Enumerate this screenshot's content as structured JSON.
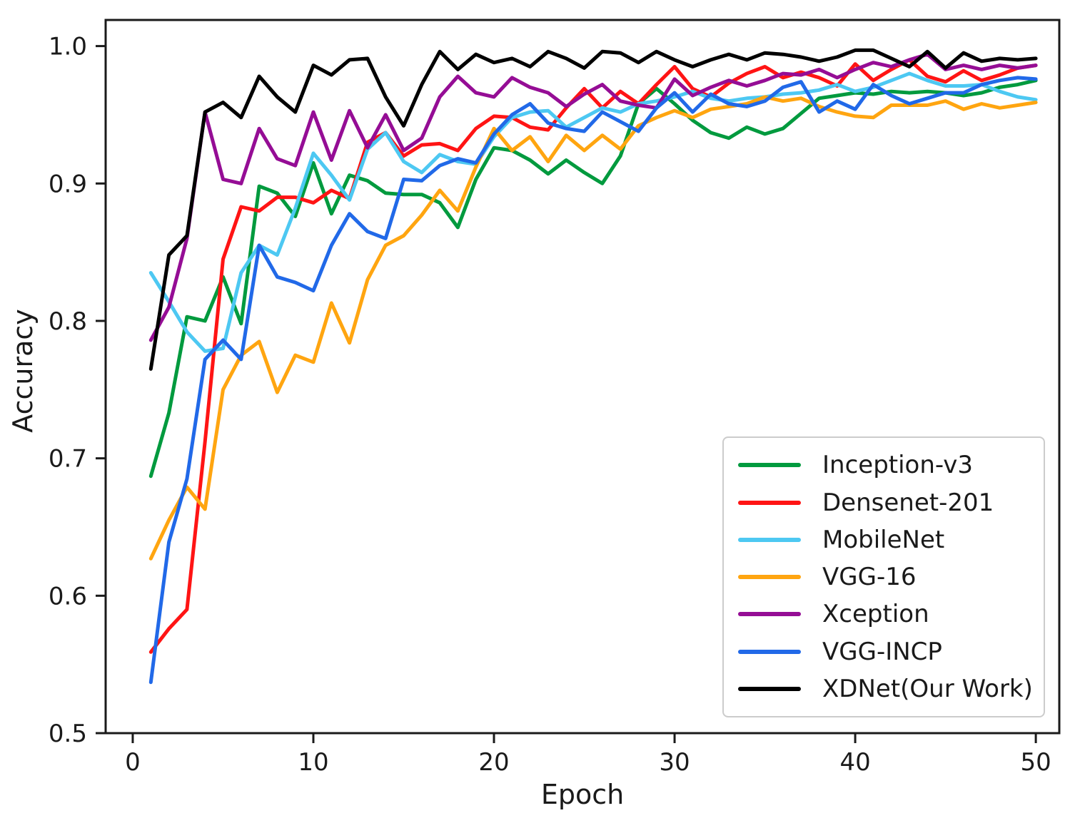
{
  "figure": {
    "xlabel": "Epoch",
    "ylabel": "Accuracy"
  },
  "colors": {
    "axis": "#1a1a1a",
    "legend_border": "#cccccc",
    "background": "#ffffff"
  },
  "chart_data": {
    "type": "line",
    "xlabel": "Epoch",
    "ylabel": "Accuracy",
    "xlim": [
      -1.5,
      51.3
    ],
    "ylim": [
      0.5,
      1.019
    ],
    "x_ticks": [
      0,
      10,
      20,
      30,
      40,
      50
    ],
    "x_tick_labels": [
      "0",
      "10",
      "20",
      "30",
      "40",
      "50"
    ],
    "y_ticks": [
      0.5,
      0.6,
      0.7,
      0.8,
      0.9,
      1.0
    ],
    "y_tick_labels": [
      "0.5",
      "0.6",
      "0.7",
      "0.8",
      "0.9",
      "1.0"
    ],
    "grid": false,
    "legend_position": "lower right",
    "x": [
      1,
      2,
      3,
      4,
      5,
      6,
      7,
      8,
      9,
      10,
      11,
      12,
      13,
      14,
      15,
      16,
      17,
      18,
      19,
      20,
      21,
      22,
      23,
      24,
      25,
      26,
      27,
      28,
      29,
      30,
      31,
      32,
      33,
      34,
      35,
      36,
      37,
      38,
      39,
      40,
      41,
      42,
      43,
      44,
      45,
      46,
      47,
      48,
      49,
      50
    ],
    "series": [
      {
        "name": "Inception-v3",
        "color": "#009a3e",
        "values": [
          0.687,
          0.733,
          0.803,
          0.8,
          0.832,
          0.798,
          0.898,
          0.893,
          0.876,
          0.915,
          0.878,
          0.906,
          0.902,
          0.893,
          0.892,
          0.892,
          0.886,
          0.868,
          0.903,
          0.926,
          0.924,
          0.917,
          0.907,
          0.917,
          0.908,
          0.9,
          0.92,
          0.958,
          0.969,
          0.958,
          0.946,
          0.937,
          0.933,
          0.941,
          0.936,
          0.94,
          0.951,
          0.962,
          0.964,
          0.966,
          0.965,
          0.967,
          0.966,
          0.967,
          0.966,
          0.964,
          0.966,
          0.97,
          0.972,
          0.975
        ]
      },
      {
        "name": "Densenet-201",
        "color": "#ff1414",
        "values": [
          0.559,
          0.576,
          0.59,
          0.712,
          0.845,
          0.883,
          0.88,
          0.89,
          0.89,
          0.886,
          0.895,
          0.889,
          0.93,
          0.937,
          0.92,
          0.928,
          0.929,
          0.924,
          0.94,
          0.949,
          0.948,
          0.941,
          0.939,
          0.955,
          0.969,
          0.955,
          0.967,
          0.958,
          0.972,
          0.985,
          0.969,
          0.963,
          0.973,
          0.98,
          0.985,
          0.977,
          0.981,
          0.977,
          0.971,
          0.987,
          0.975,
          0.983,
          0.99,
          0.978,
          0.974,
          0.982,
          0.975,
          0.979,
          0.984,
          0.986
        ]
      },
      {
        "name": "MobileNet",
        "color": "#4dc8f2",
        "values": [
          0.835,
          0.814,
          0.792,
          0.778,
          0.78,
          0.835,
          0.855,
          0.848,
          0.882,
          0.922,
          0.906,
          0.888,
          0.925,
          0.937,
          0.916,
          0.908,
          0.921,
          0.916,
          0.914,
          0.934,
          0.948,
          0.952,
          0.953,
          0.941,
          0.948,
          0.955,
          0.952,
          0.958,
          0.96,
          0.963,
          0.967,
          0.962,
          0.96,
          0.962,
          0.963,
          0.965,
          0.966,
          0.968,
          0.972,
          0.967,
          0.97,
          0.975,
          0.98,
          0.975,
          0.971,
          0.971,
          0.972,
          0.967,
          0.963,
          0.961
        ]
      },
      {
        "name": "VGG-16",
        "color": "#ffa510",
        "values": [
          0.627,
          0.655,
          0.679,
          0.663,
          0.75,
          0.775,
          0.785,
          0.748,
          0.775,
          0.77,
          0.813,
          0.784,
          0.83,
          0.855,
          0.862,
          0.877,
          0.895,
          0.88,
          0.912,
          0.94,
          0.924,
          0.934,
          0.916,
          0.935,
          0.924,
          0.935,
          0.925,
          0.942,
          0.948,
          0.953,
          0.948,
          0.954,
          0.956,
          0.958,
          0.963,
          0.96,
          0.962,
          0.956,
          0.952,
          0.949,
          0.948,
          0.957,
          0.957,
          0.957,
          0.96,
          0.954,
          0.958,
          0.955,
          0.957,
          0.959
        ]
      },
      {
        "name": "Xception",
        "color": "#950d95",
        "values": [
          0.786,
          0.81,
          0.86,
          0.952,
          0.903,
          0.9,
          0.94,
          0.918,
          0.913,
          0.952,
          0.917,
          0.953,
          0.926,
          0.95,
          0.924,
          0.933,
          0.963,
          0.978,
          0.966,
          0.963,
          0.977,
          0.97,
          0.966,
          0.956,
          0.965,
          0.972,
          0.96,
          0.957,
          0.955,
          0.976,
          0.964,
          0.97,
          0.975,
          0.971,
          0.975,
          0.98,
          0.979,
          0.983,
          0.977,
          0.983,
          0.988,
          0.985,
          0.99,
          0.994,
          0.983,
          0.986,
          0.983,
          0.986,
          0.984,
          0.986
        ]
      },
      {
        "name": "VGG-INCP",
        "color": "#2169e8",
        "values": [
          0.537,
          0.639,
          0.685,
          0.772,
          0.786,
          0.772,
          0.855,
          0.832,
          0.828,
          0.822,
          0.855,
          0.878,
          0.865,
          0.86,
          0.903,
          0.902,
          0.913,
          0.918,
          0.915,
          0.936,
          0.95,
          0.958,
          0.944,
          0.94,
          0.938,
          0.952,
          0.945,
          0.938,
          0.955,
          0.966,
          0.952,
          0.965,
          0.958,
          0.956,
          0.96,
          0.97,
          0.974,
          0.952,
          0.96,
          0.954,
          0.972,
          0.964,
          0.958,
          0.962,
          0.966,
          0.966,
          0.972,
          0.975,
          0.977,
          0.976
        ]
      },
      {
        "name": "XDNet(Our Work)",
        "color": "#000000",
        "values": [
          0.765,
          0.848,
          0.862,
          0.952,
          0.959,
          0.948,
          0.978,
          0.963,
          0.952,
          0.986,
          0.979,
          0.99,
          0.991,
          0.963,
          0.942,
          0.972,
          0.996,
          0.983,
          0.994,
          0.988,
          0.991,
          0.985,
          0.996,
          0.991,
          0.984,
          0.996,
          0.995,
          0.988,
          0.996,
          0.99,
          0.985,
          0.99,
          0.994,
          0.99,
          0.995,
          0.994,
          0.992,
          0.989,
          0.992,
          0.997,
          0.997,
          0.991,
          0.985,
          0.996,
          0.984,
          0.995,
          0.989,
          0.991,
          0.99,
          0.991
        ]
      }
    ]
  }
}
